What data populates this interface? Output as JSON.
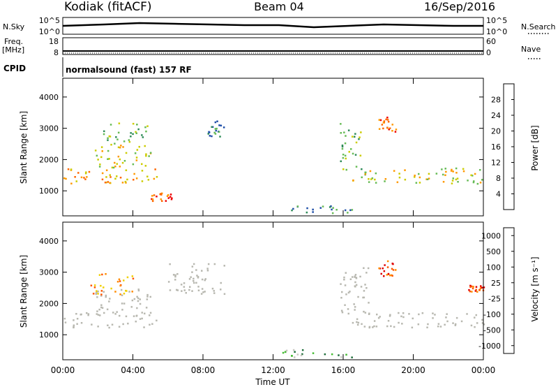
{
  "header": {
    "station": "Kodiak (fitACF)",
    "beam": "Beam 04",
    "date": "16/Sep/2016"
  },
  "top_panels": {
    "nsky_label": "N.Sky",
    "nsky_ticks": [
      "10^5",
      "10^0"
    ],
    "nsearch_label": "N.Search",
    "nsearch_ticks": [
      "10^5",
      "10^0"
    ],
    "freq_label": "Freq.",
    "freq_unit": "[MHz]",
    "freq_ticks": [
      "18",
      "8"
    ],
    "nave_label": "Nave",
    "nave_ticks": [
      "60",
      "0"
    ],
    "cpid_label": "CPID",
    "cpid_text": "normalsound (fast) 157 RF"
  },
  "colors": {
    "power_scale": [
      "#0000ee",
      "#1f4fa8",
      "#2e8b57",
      "#66bb55",
      "#cccc00",
      "#ff9900",
      "#ff6600",
      "#ee0000"
    ],
    "velocity_scale": [
      "#2a3ac8",
      "#1e6e3a",
      "#44bb33",
      "#c8c8c0",
      "#f0d000",
      "#ff8c00",
      "#ff5500",
      "#e00000"
    ],
    "ground_scatter": "#b8b8b0"
  },
  "chart_data": [
    {
      "type": "heatmap",
      "title": "",
      "xlabel": "Time UT",
      "ylabel": "Slant Range [km]",
      "x_ticks": [
        "00:00",
        "04:00",
        "08:00",
        "12:00",
        "16:00",
        "20:00",
        "00:00"
      ],
      "y_ticks": [
        "1000",
        "2000",
        "3000",
        "4000"
      ],
      "ylim": [
        200,
        4600
      ],
      "colorbar_label": "Power [dB]",
      "colorbar_ticks": [
        "4",
        "8",
        "12",
        "16",
        "20",
        "24",
        "28"
      ],
      "regions": [
        {
          "t0": 0.0,
          "t1": 5.4,
          "r0": 1250,
          "r1": 1750,
          "level": 5
        },
        {
          "t0": 1.8,
          "t1": 5.0,
          "r0": 1750,
          "r1": 2500,
          "level": 4
        },
        {
          "t0": 2.3,
          "t1": 4.8,
          "r0": 2500,
          "r1": 3200,
          "level": 3
        },
        {
          "t0": 8.2,
          "t1": 9.2,
          "r0": 2700,
          "r1": 3300,
          "level": 2
        },
        {
          "t0": 15.8,
          "t1": 17.0,
          "r0": 1700,
          "r1": 3200,
          "level": 3
        },
        {
          "t0": 16.5,
          "t1": 24.0,
          "r0": 1250,
          "r1": 1750,
          "level": 4
        },
        {
          "t0": 18.0,
          "t1": 19.0,
          "r0": 2900,
          "r1": 3400,
          "level": 6
        },
        {
          "t0": 13.0,
          "t1": 16.5,
          "r0": 300,
          "r1": 550,
          "level": 2
        },
        {
          "t0": 5.0,
          "t1": 6.2,
          "r0": 700,
          "r1": 950,
          "level": 6
        }
      ]
    },
    {
      "type": "heatmap",
      "title": "",
      "xlabel": "Time UT",
      "ylabel": "Slant Range [km]",
      "x_ticks": [
        "00:00",
        "04:00",
        "08:00",
        "12:00",
        "16:00",
        "20:00",
        "00:00"
      ],
      "y_ticks": [
        "1000",
        "2000",
        "3000",
        "4000"
      ],
      "ylim": [
        200,
        4600
      ],
      "colorbar_label": "Velocity [m s⁻¹]",
      "colorbar_ticks": [
        "1000",
        "500",
        "100",
        "25",
        "-25",
        "-100",
        "-500",
        "-1000"
      ],
      "regions": [
        {
          "t0": 0.0,
          "t1": 5.4,
          "r0": 1250,
          "r1": 1750,
          "level": 3
        },
        {
          "t0": 1.8,
          "t1": 5.0,
          "r0": 1750,
          "r1": 2500,
          "level": 3
        },
        {
          "t0": 1.5,
          "t1": 4.0,
          "r0": 2300,
          "r1": 3000,
          "level": 5
        },
        {
          "t0": 6.0,
          "t1": 9.2,
          "r0": 2300,
          "r1": 3300,
          "level": 3
        },
        {
          "t0": 15.8,
          "t1": 17.5,
          "r0": 1700,
          "r1": 3200,
          "level": 3
        },
        {
          "t0": 16.5,
          "t1": 24.0,
          "r0": 1250,
          "r1": 1750,
          "level": 3
        },
        {
          "t0": 18.0,
          "t1": 19.0,
          "r0": 2900,
          "r1": 3400,
          "level": 6
        },
        {
          "t0": 12.5,
          "t1": 16.5,
          "r0": 300,
          "r1": 550,
          "level": 2
        },
        {
          "t0": 23.0,
          "t1": 24.0,
          "r0": 2400,
          "r1": 2600,
          "level": 6
        }
      ]
    }
  ]
}
